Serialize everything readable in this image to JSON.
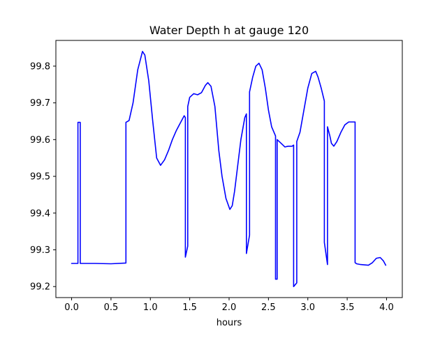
{
  "chart_data": {
    "type": "line",
    "title": "Water Depth h at gauge 120",
    "xlabel": "hours",
    "ylabel": "",
    "xlim": [
      -0.2,
      4.2
    ],
    "ylim": [
      99.17,
      99.87
    ],
    "xticks": [
      0.0,
      0.5,
      1.0,
      1.5,
      2.0,
      2.5,
      3.0,
      3.5,
      4.0
    ],
    "xtick_labels": [
      "0.0",
      "0.5",
      "1.0",
      "1.5",
      "2.0",
      "2.5",
      "3.0",
      "3.5",
      "4.0"
    ],
    "yticks": [
      99.2,
      99.3,
      99.4,
      99.5,
      99.6,
      99.7,
      99.8
    ],
    "ytick_labels": [
      "99.2",
      "99.3",
      "99.4",
      "99.5",
      "99.6",
      "99.7",
      "99.8"
    ],
    "grid": false,
    "series": [
      {
        "color": "#0000ff",
        "x": [
          0.0,
          0.08,
          0.08,
          0.11,
          0.11,
          0.3,
          0.5,
          0.69,
          0.69,
          0.73,
          0.78,
          0.84,
          0.9,
          0.93,
          0.98,
          1.03,
          1.08,
          1.13,
          1.18,
          1.23,
          1.28,
          1.33,
          1.38,
          1.43,
          1.445,
          1.445,
          1.475,
          1.475,
          1.5,
          1.55,
          1.6,
          1.65,
          1.7,
          1.73,
          1.77,
          1.82,
          1.87,
          1.91,
          1.96,
          2.01,
          2.04,
          2.07,
          2.11,
          2.15,
          2.2,
          2.22,
          2.22,
          2.26,
          2.26,
          2.3,
          2.34,
          2.38,
          2.42,
          2.46,
          2.5,
          2.54,
          2.59,
          2.59,
          2.61,
          2.61,
          2.66,
          2.71,
          2.75,
          2.8,
          2.82,
          2.82,
          2.86,
          2.86,
          2.9,
          2.95,
          3.0,
          3.05,
          3.1,
          3.13,
          3.17,
          3.21,
          3.21,
          3.25,
          3.25,
          3.28,
          3.3,
          3.33,
          3.37,
          3.42,
          3.47,
          3.52,
          3.57,
          3.6,
          3.6,
          3.62,
          3.67,
          3.72,
          3.77,
          3.82,
          3.87,
          3.92,
          3.96,
          3.99
        ],
        "y": [
          99.263,
          99.263,
          99.647,
          99.647,
          99.263,
          99.263,
          99.262,
          99.264,
          99.647,
          99.652,
          99.7,
          99.79,
          99.84,
          99.83,
          99.76,
          99.65,
          99.55,
          99.53,
          99.545,
          99.57,
          99.6,
          99.625,
          99.645,
          99.665,
          99.66,
          99.28,
          99.31,
          99.69,
          99.715,
          99.725,
          99.722,
          99.728,
          99.748,
          99.755,
          99.745,
          99.69,
          99.57,
          99.5,
          99.44,
          99.41,
          99.42,
          99.46,
          99.53,
          99.6,
          99.66,
          99.67,
          99.29,
          99.34,
          99.73,
          99.77,
          99.8,
          99.808,
          99.79,
          99.74,
          99.68,
          99.635,
          99.61,
          99.22,
          99.22,
          99.6,
          99.59,
          99.58,
          99.582,
          99.582,
          99.585,
          99.2,
          99.21,
          99.595,
          99.62,
          99.68,
          99.74,
          99.78,
          99.786,
          99.77,
          99.74,
          99.705,
          99.32,
          99.26,
          99.635,
          99.61,
          99.59,
          99.582,
          99.595,
          99.62,
          99.64,
          99.648,
          99.648,
          99.648,
          99.265,
          99.262,
          99.26,
          99.259,
          99.258,
          99.265,
          99.277,
          99.279,
          99.27,
          99.258
        ]
      }
    ]
  }
}
